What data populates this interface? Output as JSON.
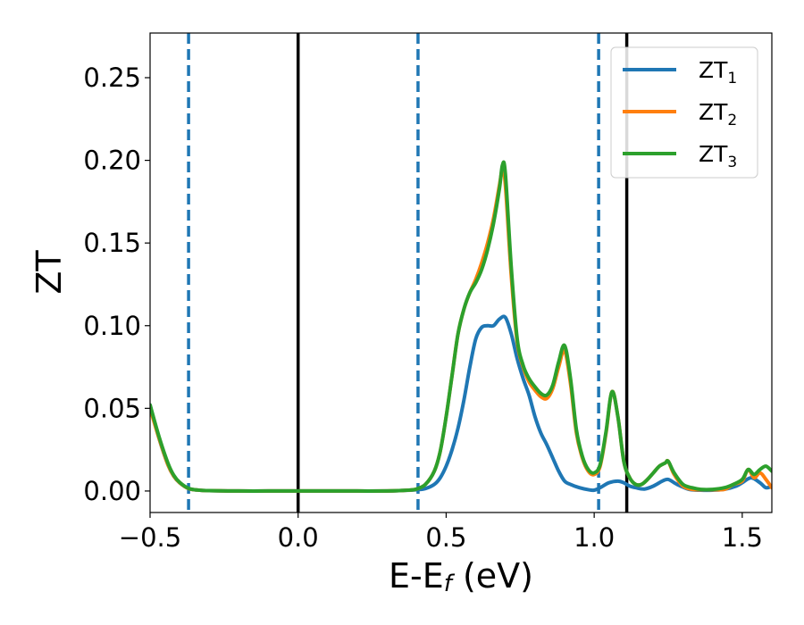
{
  "chart_data": {
    "type": "line",
    "title": "",
    "xlabel": {
      "main": "E-E",
      "sub": "f",
      "suffix": " (eV)"
    },
    "ylabel": "ZT",
    "xlim": [
      -0.5,
      1.6
    ],
    "ylim": [
      -0.013,
      0.277
    ],
    "xticks": [
      -0.5,
      0.0,
      0.5,
      1.0,
      1.5
    ],
    "xtick_labels": [
      "−0.5",
      "0.0",
      "0.5",
      "1.0",
      "1.5"
    ],
    "yticks": [
      0.0,
      0.05,
      0.1,
      0.15,
      0.2,
      0.25
    ],
    "ytick_labels": [
      "0.00",
      "0.05",
      "0.10",
      "0.15",
      "0.20",
      "0.25"
    ],
    "grid": false,
    "legend_position": "top-right",
    "vlines_solid": [
      0.0,
      1.11
    ],
    "vlines_dashed": [
      -0.37,
      0.405,
      1.015
    ],
    "vline_colors": {
      "solid": "#000000",
      "dashed": "#1f77b4"
    },
    "series": [
      {
        "name": "ZT",
        "name_sub": "1",
        "color": "#1f77b4",
        "x": [
          -0.5,
          -0.47,
          -0.44,
          -0.42,
          -0.4,
          -0.37,
          -0.34,
          -0.3,
          -0.2,
          -0.1,
          0.0,
          0.1,
          0.2,
          0.3,
          0.35,
          0.4,
          0.43,
          0.46,
          0.48,
          0.5,
          0.52,
          0.54,
          0.56,
          0.58,
          0.6,
          0.62,
          0.64,
          0.66,
          0.68,
          0.7,
          0.72,
          0.74,
          0.76,
          0.78,
          0.8,
          0.82,
          0.84,
          0.86,
          0.88,
          0.9,
          0.92,
          0.95,
          0.98,
          1.0,
          1.02,
          1.05,
          1.08,
          1.1,
          1.12,
          1.14,
          1.17,
          1.2,
          1.23,
          1.25,
          1.28,
          1.32,
          1.36,
          1.4,
          1.44,
          1.48,
          1.5,
          1.53,
          1.56,
          1.58,
          1.6
        ],
        "y": [
          0.052,
          0.032,
          0.016,
          0.009,
          0.005,
          0.0015,
          0.0006,
          0.0002,
          0.0,
          0.0,
          0.0,
          0.0,
          0.0,
          0.0,
          0.0003,
          0.0008,
          0.0015,
          0.004,
          0.008,
          0.015,
          0.025,
          0.038,
          0.055,
          0.075,
          0.092,
          0.099,
          0.1,
          0.1,
          0.104,
          0.105,
          0.095,
          0.08,
          0.068,
          0.058,
          0.045,
          0.035,
          0.028,
          0.02,
          0.012,
          0.006,
          0.004,
          0.002,
          0.0008,
          0.0005,
          0.002,
          0.005,
          0.006,
          0.005,
          0.003,
          0.002,
          0.0012,
          0.003,
          0.006,
          0.007,
          0.004,
          0.001,
          0.0005,
          0.0005,
          0.001,
          0.003,
          0.005,
          0.008,
          0.005,
          0.002,
          0.003
        ]
      },
      {
        "name": "ZT",
        "name_sub": "2",
        "color": "#ff7f0e",
        "x": [
          -0.5,
          -0.47,
          -0.44,
          -0.42,
          -0.4,
          -0.37,
          -0.34,
          -0.3,
          -0.2,
          -0.1,
          0.0,
          0.1,
          0.2,
          0.3,
          0.35,
          0.38,
          0.4,
          0.43,
          0.46,
          0.48,
          0.5,
          0.52,
          0.54,
          0.56,
          0.58,
          0.6,
          0.62,
          0.64,
          0.66,
          0.68,
          0.69,
          0.7,
          0.72,
          0.74,
          0.76,
          0.78,
          0.8,
          0.82,
          0.84,
          0.86,
          0.88,
          0.9,
          0.92,
          0.94,
          0.96,
          0.98,
          1.0,
          1.02,
          1.04,
          1.06,
          1.08,
          1.1,
          1.12,
          1.14,
          1.16,
          1.18,
          1.2,
          1.22,
          1.24,
          1.25,
          1.27,
          1.3,
          1.33,
          1.36,
          1.4,
          1.44,
          1.47,
          1.5,
          1.52,
          1.54,
          1.56,
          1.58,
          1.6
        ],
        "y": [
          0.05,
          0.032,
          0.016,
          0.009,
          0.005,
          0.0015,
          0.0006,
          0.0002,
          0.0,
          0.0,
          0.0,
          0.0,
          0.0,
          0.0,
          0.0003,
          0.0006,
          0.0012,
          0.004,
          0.012,
          0.024,
          0.045,
          0.07,
          0.095,
          0.11,
          0.12,
          0.128,
          0.138,
          0.15,
          0.165,
          0.185,
          0.194,
          0.185,
          0.13,
          0.09,
          0.075,
          0.066,
          0.061,
          0.057,
          0.056,
          0.062,
          0.075,
          0.085,
          0.065,
          0.035,
          0.02,
          0.012,
          0.01,
          0.015,
          0.035,
          0.06,
          0.045,
          0.018,
          0.008,
          0.004,
          0.004,
          0.007,
          0.011,
          0.015,
          0.017,
          0.018,
          0.01,
          0.003,
          0.001,
          0.0008,
          0.0008,
          0.001,
          0.004,
          0.006,
          0.013,
          0.008,
          0.011,
          0.007,
          0.002
        ]
      },
      {
        "name": "ZT",
        "name_sub": "3",
        "color": "#2ca02c",
        "x": [
          -0.5,
          -0.47,
          -0.44,
          -0.42,
          -0.4,
          -0.37,
          -0.34,
          -0.3,
          -0.2,
          -0.1,
          0.0,
          0.1,
          0.2,
          0.3,
          0.35,
          0.38,
          0.4,
          0.43,
          0.46,
          0.48,
          0.5,
          0.52,
          0.54,
          0.56,
          0.58,
          0.6,
          0.62,
          0.64,
          0.66,
          0.68,
          0.69,
          0.7,
          0.72,
          0.74,
          0.76,
          0.78,
          0.8,
          0.82,
          0.84,
          0.86,
          0.88,
          0.9,
          0.92,
          0.94,
          0.96,
          0.98,
          1.0,
          1.02,
          1.04,
          1.06,
          1.08,
          1.1,
          1.12,
          1.14,
          1.16,
          1.18,
          1.2,
          1.22,
          1.24,
          1.25,
          1.27,
          1.3,
          1.33,
          1.36,
          1.4,
          1.44,
          1.47,
          1.5,
          1.52,
          1.54,
          1.56,
          1.58,
          1.6
        ],
        "y": [
          0.052,
          0.033,
          0.017,
          0.0095,
          0.0052,
          0.0016,
          0.0006,
          0.0002,
          0.0,
          0.0,
          0.0,
          0.0,
          0.0,
          0.0,
          0.0003,
          0.0006,
          0.0012,
          0.004,
          0.012,
          0.024,
          0.045,
          0.07,
          0.095,
          0.11,
          0.12,
          0.126,
          0.134,
          0.146,
          0.162,
          0.183,
          0.197,
          0.192,
          0.135,
          0.092,
          0.076,
          0.068,
          0.063,
          0.059,
          0.058,
          0.064,
          0.078,
          0.088,
          0.068,
          0.037,
          0.021,
          0.013,
          0.011,
          0.016,
          0.036,
          0.06,
          0.045,
          0.018,
          0.008,
          0.004,
          0.004,
          0.007,
          0.011,
          0.015,
          0.017,
          0.018,
          0.011,
          0.004,
          0.002,
          0.001,
          0.001,
          0.002,
          0.004,
          0.007,
          0.013,
          0.01,
          0.013,
          0.015,
          0.012
        ]
      }
    ]
  }
}
